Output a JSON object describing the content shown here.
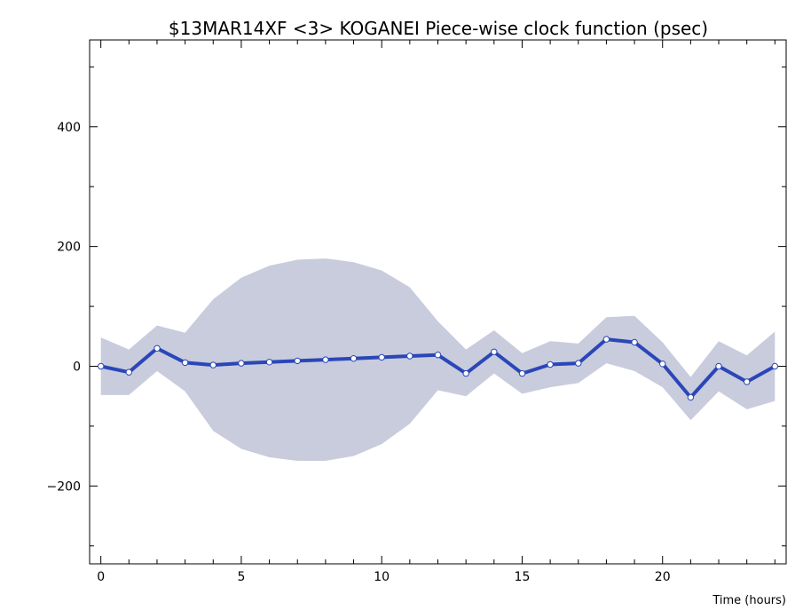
{
  "chart_data": {
    "type": "line",
    "title": "$13MAR14XF <3>  KOGANEI   Piece-wise clock function (psec)",
    "xlabel": "Time (hours)",
    "ylabel": "",
    "xlim": [
      -0.4,
      24.4
    ],
    "ylim": [
      -330,
      545
    ],
    "x_ticks": [
      0,
      5,
      10,
      15,
      20
    ],
    "y_ticks": [
      -200,
      0,
      200,
      400
    ],
    "grid": false,
    "colors": {
      "line": "#2a46b8",
      "band": "#c8ccdc",
      "marker_fill": "#ffffff"
    },
    "series": [
      {
        "x": [
          0,
          1,
          2,
          3,
          4,
          5,
          6,
          7,
          8,
          9,
          10,
          11,
          12,
          13,
          14,
          15,
          16,
          17,
          18,
          19,
          20,
          21,
          22,
          23,
          24
        ],
        "values": [
          0,
          -10,
          30,
          6,
          2,
          5,
          7,
          9,
          11,
          13,
          15,
          17,
          19,
          -12,
          24,
          -12,
          3,
          5,
          45,
          40,
          4,
          -52,
          0,
          -26,
          0
        ],
        "band_upper": [
          48,
          28,
          68,
          56,
          112,
          148,
          168,
          178,
          180,
          174,
          160,
          132,
          75,
          28,
          60,
          22,
          42,
          38,
          82,
          84,
          40,
          -18,
          42,
          18,
          58
        ],
        "band_lower": [
          -48,
          -48,
          -8,
          -42,
          -108,
          -138,
          -152,
          -158,
          -158,
          -150,
          -130,
          -96,
          -40,
          -50,
          -12,
          -46,
          -35,
          -28,
          5,
          -8,
          -35,
          -90,
          -42,
          -72,
          -58
        ]
      }
    ]
  }
}
